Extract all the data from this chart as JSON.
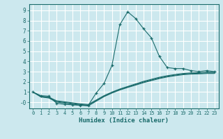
{
  "title": "",
  "xlabel": "Humidex (Indice chaleur)",
  "ylabel": "",
  "background_color": "#cce8ee",
  "grid_color": "#ffffff",
  "line_color": "#1a6b6b",
  "xlim": [
    -0.5,
    23.5
  ],
  "ylim": [
    -0.6,
    9.6
  ],
  "yticks": [
    0,
    1,
    2,
    3,
    4,
    5,
    6,
    7,
    8,
    9
  ],
  "ytick_labels": [
    "-0",
    "1",
    "2",
    "3",
    "4",
    "5",
    "6",
    "7",
    "8",
    "9"
  ],
  "xticks": [
    0,
    1,
    2,
    3,
    4,
    5,
    6,
    7,
    8,
    9,
    10,
    11,
    12,
    13,
    14,
    15,
    16,
    17,
    18,
    19,
    20,
    21,
    22,
    23
  ],
  "series": [
    {
      "x": [
        0,
        1,
        2,
        3,
        4,
        5,
        6,
        7,
        8,
        9,
        10,
        11,
        12,
        13,
        14,
        15,
        16,
        17,
        18,
        19,
        20,
        21,
        22,
        23
      ],
      "y": [
        1.0,
        0.65,
        0.6,
        -0.1,
        -0.2,
        -0.25,
        -0.3,
        -0.3,
        0.9,
        1.85,
        3.6,
        7.6,
        8.85,
        8.2,
        7.2,
        6.3,
        4.5,
        3.4,
        3.3,
        3.3,
        3.1,
        3.0,
        3.1,
        3.0
      ],
      "marker": "+"
    },
    {
      "x": [
        0,
        1,
        2,
        3,
        4,
        5,
        6,
        7,
        8,
        9,
        10,
        11,
        12,
        13,
        14,
        15,
        16,
        17,
        18,
        19,
        20,
        21,
        22,
        23
      ],
      "y": [
        1.0,
        0.6,
        0.5,
        0.15,
        0.05,
        -0.05,
        -0.15,
        -0.22,
        0.22,
        0.65,
        1.0,
        1.3,
        1.55,
        1.8,
        2.05,
        2.25,
        2.45,
        2.6,
        2.72,
        2.82,
        2.88,
        2.9,
        2.95,
        2.95
      ],
      "marker": null
    },
    {
      "x": [
        0,
        1,
        2,
        3,
        4,
        5,
        6,
        7,
        8,
        9,
        10,
        11,
        12,
        13,
        14,
        15,
        16,
        17,
        18,
        19,
        20,
        21,
        22,
        23
      ],
      "y": [
        1.0,
        0.52,
        0.42,
        0.02,
        -0.08,
        -0.18,
        -0.28,
        -0.35,
        0.1,
        0.55,
        0.9,
        1.2,
        1.45,
        1.68,
        1.92,
        2.12,
        2.32,
        2.48,
        2.6,
        2.7,
        2.76,
        2.78,
        2.82,
        2.82
      ],
      "marker": null
    },
    {
      "x": [
        0,
        1,
        2,
        3,
        4,
        5,
        6,
        7,
        8,
        9,
        10,
        11,
        12,
        13,
        14,
        15,
        16,
        17,
        18,
        19,
        20,
        21,
        22,
        23
      ],
      "y": [
        1.0,
        0.56,
        0.46,
        0.08,
        -0.02,
        -0.12,
        -0.22,
        -0.28,
        0.16,
        0.6,
        0.95,
        1.25,
        1.5,
        1.74,
        1.98,
        2.18,
        2.38,
        2.54,
        2.66,
        2.76,
        2.82,
        2.84,
        2.88,
        2.88
      ],
      "marker": null
    }
  ]
}
